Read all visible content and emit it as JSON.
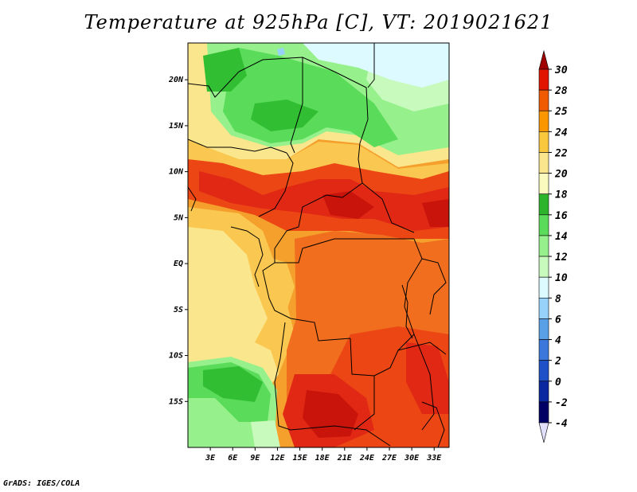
{
  "title": "Temperature at 925hPa [C], VT: 2019021621",
  "footer": "GrADS: IGES/COLA",
  "map": {
    "lon_range": [
      0,
      35
    ],
    "lat_range": [
      -20,
      24
    ],
    "lat_ticks": [
      {
        "value": 20,
        "label": "20N"
      },
      {
        "value": 15,
        "label": "15N"
      },
      {
        "value": 10,
        "label": "10N"
      },
      {
        "value": 5,
        "label": "5N"
      },
      {
        "value": 0,
        "label": "EQ"
      },
      {
        "value": -5,
        "label": "5S"
      },
      {
        "value": -10,
        "label": "10S"
      },
      {
        "value": -15,
        "label": "15S"
      }
    ],
    "lon_ticks": [
      {
        "value": 3,
        "label": "3E"
      },
      {
        "value": 6,
        "label": "6E"
      },
      {
        "value": 9,
        "label": "9E"
      },
      {
        "value": 12,
        "label": "12E"
      },
      {
        "value": 15,
        "label": "15E"
      },
      {
        "value": 18,
        "label": "18E"
      },
      {
        "value": 21,
        "label": "21E"
      },
      {
        "value": 24,
        "label": "24E"
      },
      {
        "value": 27,
        "label": "27E"
      },
      {
        "value": 30,
        "label": "30E"
      },
      {
        "value": 33,
        "label": "33E"
      }
    ]
  },
  "colorbar": {
    "levels": [
      "30",
      "28",
      "25",
      "24",
      "22",
      "20",
      "18",
      "16",
      "14",
      "12",
      "10",
      "8",
      "6",
      "4",
      "2",
      "0",
      "-2",
      "-4"
    ],
    "colors": [
      "#a00000",
      "#e11400",
      "#f05a00",
      "#fa9600",
      "#fac83c",
      "#fae68c",
      "#fafabe",
      "#2db42d",
      "#5adc5a",
      "#96f08c",
      "#c8fabe",
      "#dcfaff",
      "#96d2fa",
      "#5aa0e6",
      "#3c78dc",
      "#1e50c8",
      "#0a28a0",
      "#000064",
      "#e1e1ff"
    ]
  },
  "palette": {
    "dark_red": "#c8140a",
    "red": "#e12814",
    "red_orange": "#eb4614",
    "orange": "#f06e1e",
    "light_orange": "#f5a02d",
    "gold": "#fac850",
    "light_yellow": "#fae68c",
    "pale_yellow": "#fafabe",
    "green": "#32be32",
    "mid_green": "#5adc5a",
    "light_green": "#96f08c",
    "pale_green": "#c8fabe",
    "pale_cyan": "#dcfaff",
    "light_blue": "#96d2fa"
  }
}
